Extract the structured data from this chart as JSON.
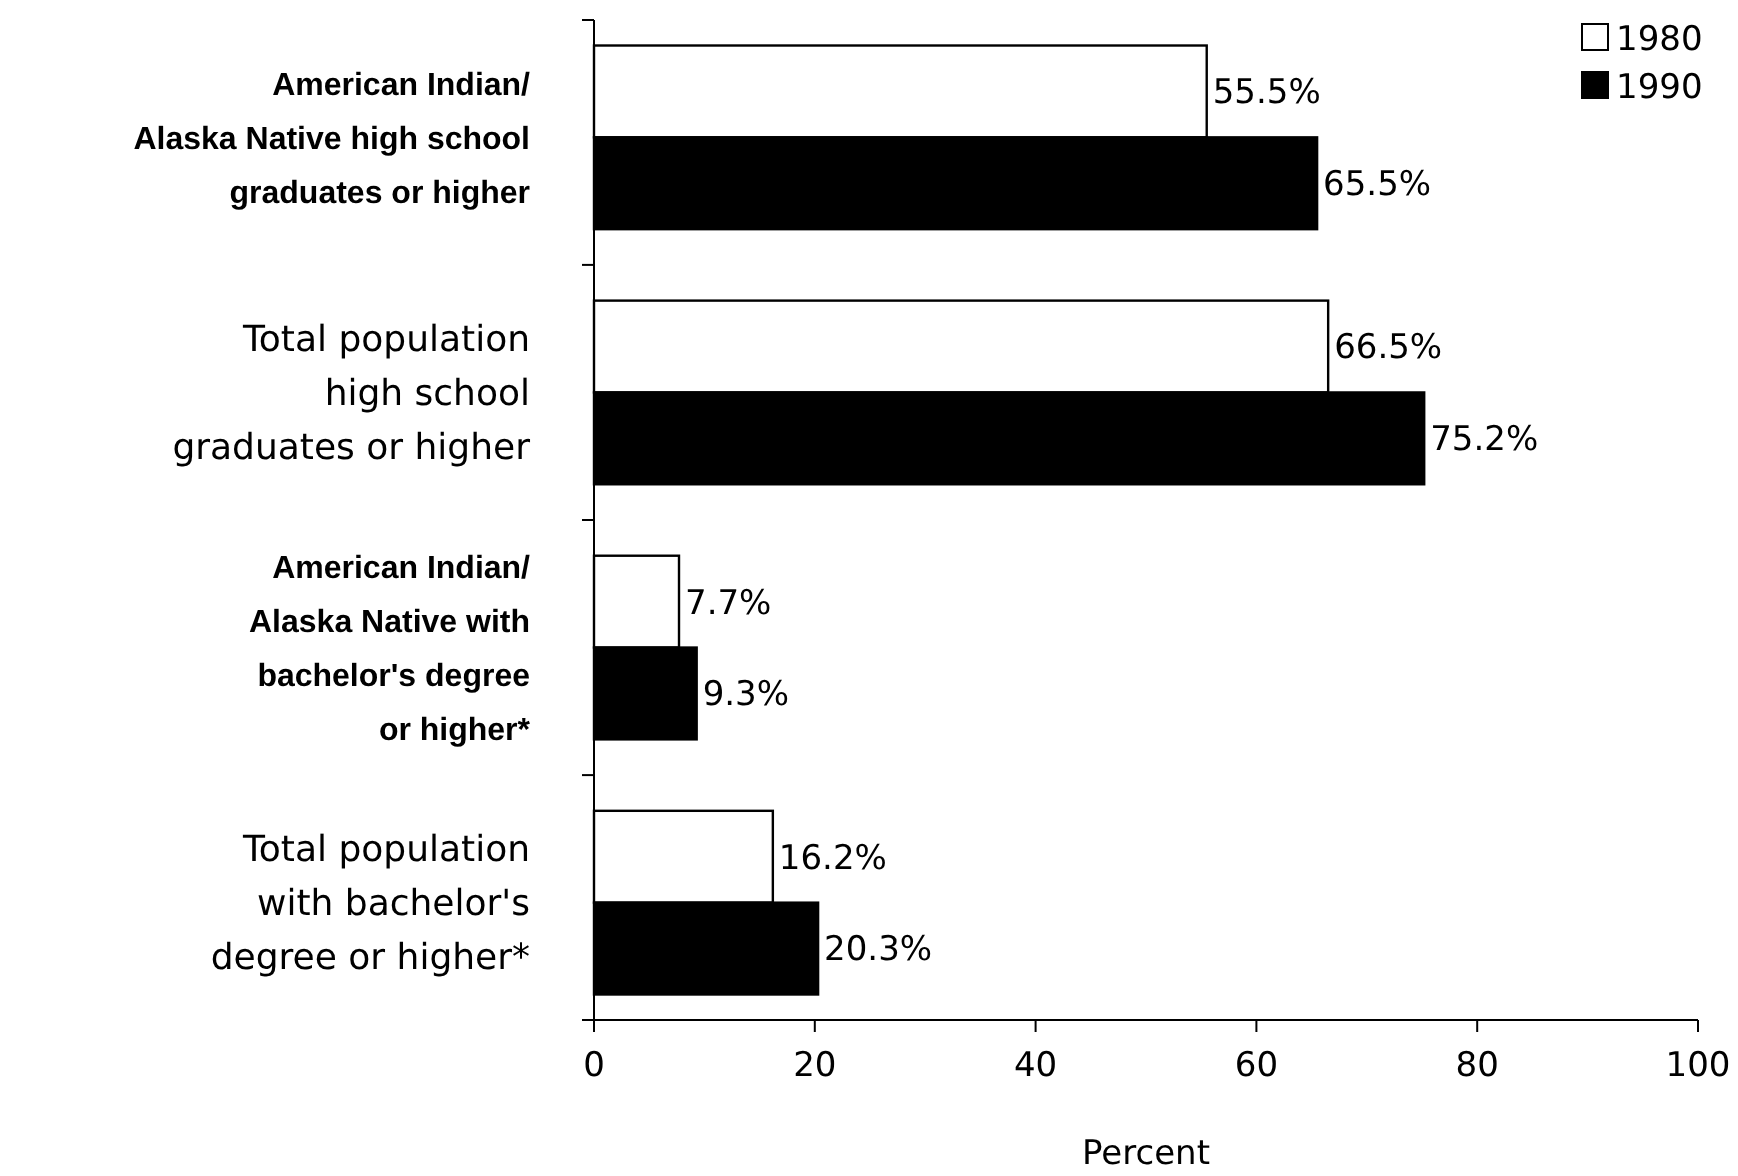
{
  "chart_data": {
    "type": "bar",
    "orientation": "horizontal",
    "xlabel": "Percent",
    "categories": [
      "American Indian/\nAlaska Native high school\ngraduates or higher",
      "Total population\nhigh school\ngraduates or higher",
      "American Indian/\nAlaska Native with\nbachelor's degree\nor higher*",
      "Total population\nwith bachelor's\ndegree or higher*"
    ],
    "series": [
      {
        "name": "1980",
        "color": "#ffffff",
        "values": [
          55.5,
          66.5,
          7.7,
          16.2
        ],
        "value_labels": [
          "55.5%",
          "66.5%",
          "7.7%",
          "16.2%"
        ]
      },
      {
        "name": "1990",
        "color": "#000000",
        "values": [
          65.5,
          75.2,
          9.3,
          20.3
        ],
        "value_labels": [
          "65.5%",
          "75.2%",
          "9.3%",
          "20.3%"
        ]
      }
    ],
    "xlim": [
      0,
      100
    ],
    "xticks": [
      0,
      20,
      40,
      60,
      80,
      100
    ],
    "legend": "top right",
    "grid": false
  }
}
